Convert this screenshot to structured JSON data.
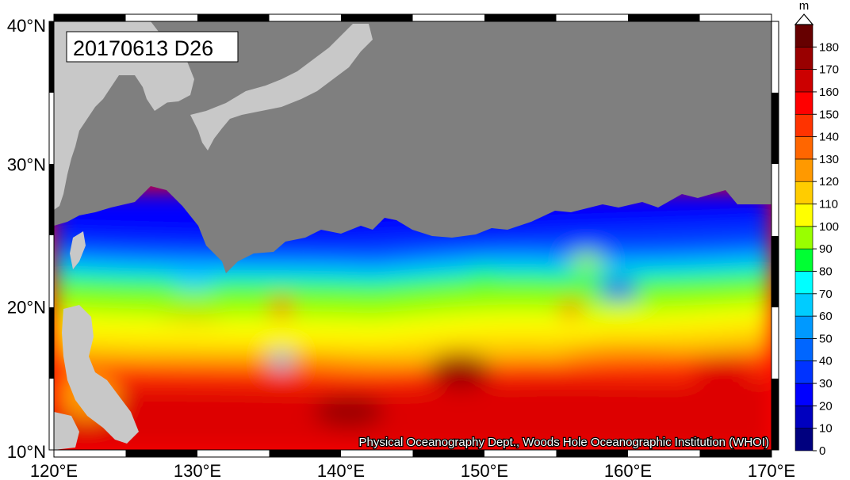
{
  "map": {
    "title": "20170613 D26",
    "credit": "Physical Oceanography Dept., Woods Hole Oceanographic Institution (WHOI)",
    "lon_range": [
      120,
      170
    ],
    "lat_range": [
      10,
      40
    ],
    "lon_ticks": [
      {
        "value": 120,
        "label": "120°E"
      },
      {
        "value": 130,
        "label": "130°E"
      },
      {
        "value": 140,
        "label": "140°E"
      },
      {
        "value": 150,
        "label": "150°E"
      },
      {
        "value": 160,
        "label": "160°E"
      },
      {
        "value": 170,
        "label": "170°E"
      }
    ],
    "lat_ticks": [
      {
        "value": 10,
        "label": "10°N"
      },
      {
        "value": 20,
        "label": "20°N"
      },
      {
        "value": 30,
        "label": "30°N"
      },
      {
        "value": 40,
        "label": "40°N"
      }
    ],
    "colors": {
      "land": "#c8c8c8",
      "mask": "#7f7f7f",
      "frame": "#000000"
    }
  },
  "colorbar": {
    "unit": "m",
    "ticks": [
      0,
      10,
      20,
      30,
      40,
      50,
      60,
      70,
      80,
      90,
      100,
      110,
      120,
      130,
      140,
      150,
      160,
      170,
      180
    ],
    "tick_labels": [
      "0",
      "10",
      "20",
      "30",
      "40",
      "50",
      "60",
      "70",
      "80",
      "90",
      "100",
      "110",
      "120",
      "130",
      "140",
      "150",
      "160",
      "170",
      "180"
    ],
    "colors": [
      "#00007f",
      "#0000bf",
      "#0000ff",
      "#0033ff",
      "#0066ff",
      "#0099ff",
      "#00ccff",
      "#00ffff",
      "#00ff33",
      "#99ff00",
      "#ffff00",
      "#ffcc00",
      "#ff9900",
      "#ff6600",
      "#ff3300",
      "#ff0000",
      "#cc0000",
      "#990000",
      "#660000"
    ],
    "top_color": "#330000"
  }
}
